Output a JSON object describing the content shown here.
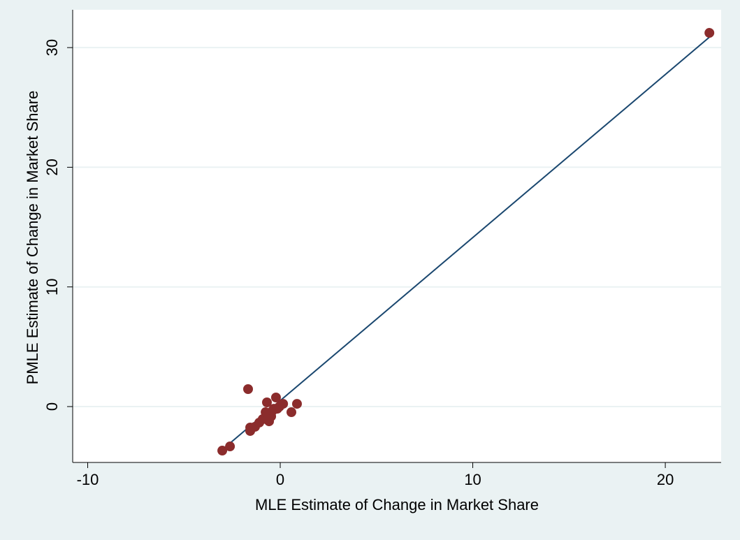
{
  "chart_data": {
    "type": "scatter",
    "x_label": "MLE Estimate of Change in Market Share",
    "y_label": "PMLE Estimate of Change in Market Share",
    "xlim": [
      -10.78,
      22.9
    ],
    "ylim": [
      -4.67,
      33.16
    ],
    "xticks": [
      -10,
      0,
      10,
      20
    ],
    "yticks": [
      0,
      10,
      20,
      30
    ],
    "grid": true,
    "series": [
      {
        "color": "#8b2c2c",
        "x": [
          22.29,
          -3.01,
          -2.61,
          -1.67,
          -1.56,
          -1.56,
          -1.31,
          -1.09,
          -0.91,
          -0.76,
          -0.69,
          -0.58,
          -0.47,
          -0.4,
          -0.33,
          -0.22,
          -0.15,
          -0.04,
          0.15,
          0.58,
          0.87
        ],
        "values": [
          31.23,
          -3.68,
          -3.33,
          1.46,
          -2.04,
          -1.75,
          -1.69,
          -1.34,
          -1.05,
          -0.47,
          0.35,
          -1.23,
          -0.82,
          -0.35,
          -0.18,
          0.76,
          -0.18,
          0,
          0.23,
          -0.47,
          0.23
        ]
      }
    ],
    "fit_line": {
      "color": "#1a476f",
      "x": [
        -3.19,
        22.43
      ],
      "values": [
        -3.85,
        31.06
      ]
    }
  }
}
